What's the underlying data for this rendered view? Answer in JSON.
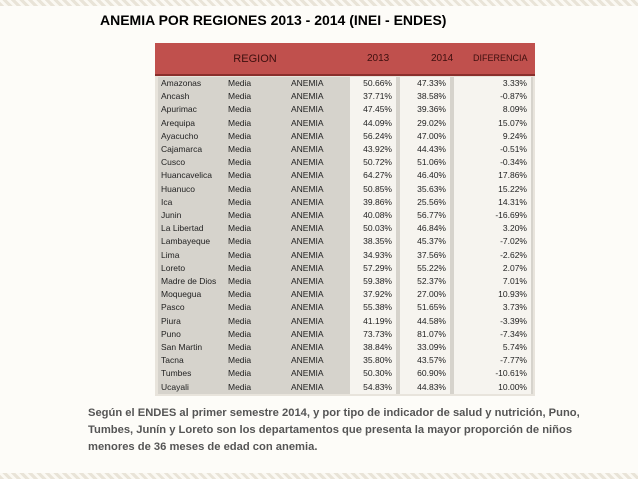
{
  "title": "ANEMIA POR REGIONES 2013 - 2014 (INEI - ENDES)",
  "table": {
    "headers": {
      "region": "REGION",
      "y2013": "2013",
      "y2014": "2014",
      "diferencia": "DIFERENCIA"
    },
    "rows": [
      {
        "region": "Amazonas",
        "tipo": "Media",
        "indicador": "ANEMIA",
        "v2013": "50.66%",
        "v2014": "47.33%",
        "dif": "3.33%"
      },
      {
        "region": "Ancash",
        "tipo": "Media",
        "indicador": "ANEMIA",
        "v2013": "37.71%",
        "v2014": "38.58%",
        "dif": "-0.87%"
      },
      {
        "region": "Apurimac",
        "tipo": "Media",
        "indicador": "ANEMIA",
        "v2013": "47.45%",
        "v2014": "39.36%",
        "dif": "8.09%"
      },
      {
        "region": "Arequipa",
        "tipo": "Media",
        "indicador": "ANEMIA",
        "v2013": "44.09%",
        "v2014": "29.02%",
        "dif": "15.07%"
      },
      {
        "region": "Ayacucho",
        "tipo": "Media",
        "indicador": "ANEMIA",
        "v2013": "56.24%",
        "v2014": "47.00%",
        "dif": "9.24%"
      },
      {
        "region": "Cajamarca",
        "tipo": "Media",
        "indicador": "ANEMIA",
        "v2013": "43.92%",
        "v2014": "44.43%",
        "dif": "-0.51%"
      },
      {
        "region": "Cusco",
        "tipo": "Media",
        "indicador": "ANEMIA",
        "v2013": "50.72%",
        "v2014": "51.06%",
        "dif": "-0.34%"
      },
      {
        "region": "Huancavelica",
        "tipo": "Media",
        "indicador": "ANEMIA",
        "v2013": "64.27%",
        "v2014": "46.40%",
        "dif": "17.86%"
      },
      {
        "region": "Huanuco",
        "tipo": "Media",
        "indicador": "ANEMIA",
        "v2013": "50.85%",
        "v2014": "35.63%",
        "dif": "15.22%"
      },
      {
        "region": "Ica",
        "tipo": "Media",
        "indicador": "ANEMIA",
        "v2013": "39.86%",
        "v2014": "25.56%",
        "dif": "14.31%"
      },
      {
        "region": "Junin",
        "tipo": "Media",
        "indicador": "ANEMIA",
        "v2013": "40.08%",
        "v2014": "56.77%",
        "dif": "-16.69%"
      },
      {
        "region": "La Libertad",
        "tipo": "Media",
        "indicador": "ANEMIA",
        "v2013": "50.03%",
        "v2014": "46.84%",
        "dif": "3.20%"
      },
      {
        "region": "Lambayeque",
        "tipo": "Media",
        "indicador": "ANEMIA",
        "v2013": "38.35%",
        "v2014": "45.37%",
        "dif": "-7.02%"
      },
      {
        "region": "Lima",
        "tipo": "Media",
        "indicador": "ANEMIA",
        "v2013": "34.93%",
        "v2014": "37.56%",
        "dif": "-2.62%"
      },
      {
        "region": "Loreto",
        "tipo": "Media",
        "indicador": "ANEMIA",
        "v2013": "57.29%",
        "v2014": "55.22%",
        "dif": "2.07%"
      },
      {
        "region": "Madre de Dios",
        "tipo": "Media",
        "indicador": "ANEMIA",
        "v2013": "59.38%",
        "v2014": "52.37%",
        "dif": "7.01%"
      },
      {
        "region": "Moquegua",
        "tipo": "Media",
        "indicador": "ANEMIA",
        "v2013": "37.92%",
        "v2014": "27.00%",
        "dif": "10.93%"
      },
      {
        "region": "Pasco",
        "tipo": "Media",
        "indicador": "ANEMIA",
        "v2013": "55.38%",
        "v2014": "51.65%",
        "dif": "3.73%"
      },
      {
        "region": "Piura",
        "tipo": "Media",
        "indicador": "ANEMIA",
        "v2013": "41.19%",
        "v2014": "44.58%",
        "dif": "-3.39%"
      },
      {
        "region": "Puno",
        "tipo": "Media",
        "indicador": "ANEMIA",
        "v2013": "73.73%",
        "v2014": "81.07%",
        "dif": "-7.34%"
      },
      {
        "region": "San Martin",
        "tipo": "Media",
        "indicador": "ANEMIA",
        "v2013": "38.84%",
        "v2014": "33.09%",
        "dif": "5.74%"
      },
      {
        "region": "Tacna",
        "tipo": "Media",
        "indicador": "ANEMIA",
        "v2013": "35.80%",
        "v2014": "43.57%",
        "dif": "-7.77%"
      },
      {
        "region": "Tumbes",
        "tipo": "Media",
        "indicador": "ANEMIA",
        "v2013": "50.30%",
        "v2014": "60.90%",
        "dif": "-10.61%"
      },
      {
        "region": "Ucayali",
        "tipo": "Media",
        "indicador": "ANEMIA",
        "v2013": "54.83%",
        "v2014": "44.83%",
        "dif": "10.00%"
      }
    ]
  },
  "note": "Según el ENDES al primer semestre 2014, y por tipo de indicador de salud y nutrición, Puno, Tumbes, Junín y Loreto son los departamentos que presenta la mayor proporción de niños menores de 36 meses de edad con anemia."
}
